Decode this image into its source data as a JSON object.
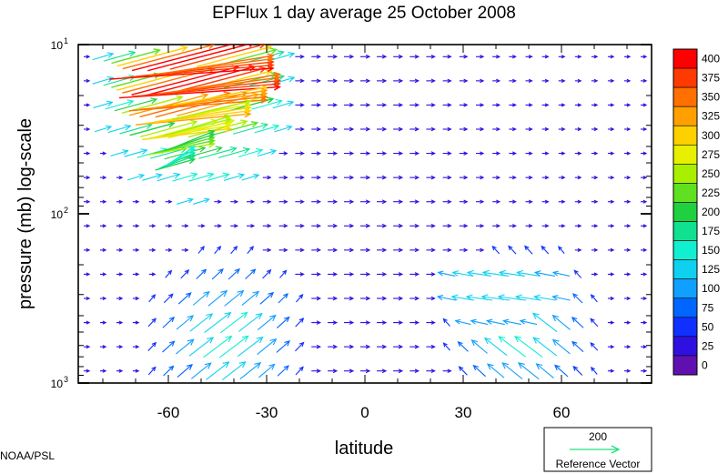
{
  "chart_data": {
    "type": "vector-field",
    "title": "EPFlux  1 day average  25 October   2008",
    "xlabel": "latitude",
    "ylabel": "pressure (mb)  log-scale",
    "x_ticks": [
      {
        "value": -60,
        "label": "-60"
      },
      {
        "value": -30,
        "label": "-30"
      },
      {
        "value": 0,
        "label": "0"
      },
      {
        "value": 30,
        "label": "30"
      },
      {
        "value": 60,
        "label": "60"
      }
    ],
    "y_ticks": [
      {
        "value": 10,
        "base": "10",
        "exp": "1"
      },
      {
        "value": 100,
        "base": "10",
        "exp": "2"
      },
      {
        "value": 1000,
        "base": "10",
        "exp": "3"
      }
    ],
    "xlim": [
      -87.5,
      87.5
    ],
    "ylim": [
      1000,
      10
    ],
    "y_scale": "log",
    "colorbar": {
      "labels": [
        "400",
        "375",
        "350",
        "325",
        "300",
        "275",
        "250",
        "225",
        "200",
        "175",
        "150",
        "125",
        "100",
        "75",
        "50",
        "25",
        "0"
      ],
      "colors": [
        "#ff0000",
        "#ff3a00",
        "#ff7000",
        "#ffa000",
        "#ffd000",
        "#e6f000",
        "#a8f000",
        "#60e020",
        "#20d040",
        "#10e090",
        "#10f0d0",
        "#10d0f0",
        "#10a0ff",
        "#0066ff",
        "#1030ff",
        "#3010e0",
        "#6010b0"
      ]
    },
    "source_label": "NOAA/PSL",
    "reference_vector": {
      "value": "200",
      "label": "Reference Vector",
      "color": "#20e080"
    }
  }
}
